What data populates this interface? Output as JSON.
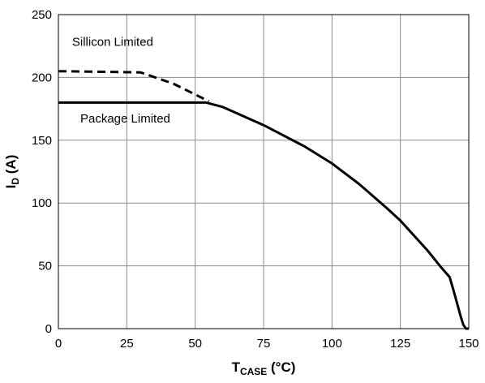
{
  "chart_data": {
    "type": "line",
    "title": "",
    "xlabel": {
      "main": "T",
      "sub": "CASE",
      "unit": " (°C)"
    },
    "ylabel": {
      "main": "I",
      "sub": "D",
      "unit": " (A)"
    },
    "xlim": [
      0,
      150
    ],
    "ylim": [
      0,
      250
    ],
    "xticks": [
      0,
      25,
      50,
      75,
      100,
      125,
      150
    ],
    "yticks": [
      0,
      50,
      100,
      150,
      200,
      250
    ],
    "grid": true,
    "legend": "none",
    "series": [
      {
        "style": "dashed",
        "color": "#000000",
        "x": [
          0,
          30,
          42,
          55
        ],
        "y": [
          205,
          204,
          195,
          181
        ]
      },
      {
        "style": "solid",
        "color": "#000000",
        "x": [
          0,
          54,
          60,
          75,
          90,
          100,
          110,
          120,
          125,
          130,
          135,
          140,
          143,
          144.5,
          146,
          147,
          148,
          149,
          150
        ],
        "y": [
          180,
          180,
          176.5,
          162,
          145,
          131.5,
          115,
          96,
          86,
          74,
          62,
          48.5,
          41,
          30,
          18,
          10,
          3,
          0,
          0
        ]
      }
    ],
    "annotations": [
      {
        "text": "Sillicon Limited",
        "x": 5,
        "y": 225
      },
      {
        "text": "Package Limited",
        "x": 8,
        "y": 164
      }
    ]
  }
}
